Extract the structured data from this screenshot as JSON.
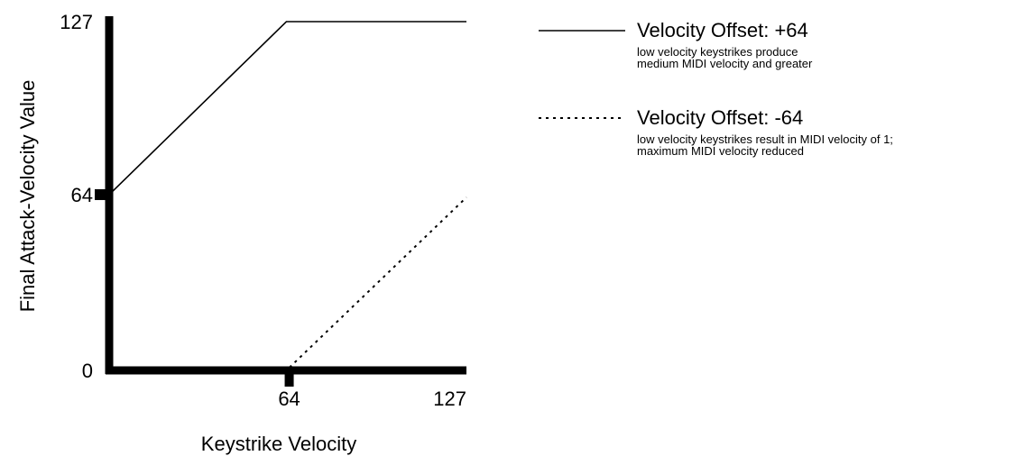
{
  "chart_data": {
    "type": "line",
    "title": "",
    "xlabel": "Keystrike Velocity",
    "ylabel": "Final Attack-Velocity Value",
    "xlim": [
      0,
      127
    ],
    "ylim": [
      0,
      127
    ],
    "x_ticks": [
      {
        "value": 64,
        "label": "64"
      },
      {
        "value": 127,
        "label": "127"
      }
    ],
    "y_ticks": [
      {
        "value": 0,
        "label": "0"
      },
      {
        "value": 64,
        "label": "64"
      },
      {
        "value": 127,
        "label": "127"
      }
    ],
    "grid": false,
    "legend_position": "right",
    "series": [
      {
        "name": "Velocity Offset: +64",
        "description": [
          "low velocity keystrikes produce",
          "medium MIDI velocity and greater"
        ],
        "style": "solid",
        "x": [
          0,
          63,
          127
        ],
        "y": [
          64,
          127,
          127
        ]
      },
      {
        "name": "Velocity Offset: -64",
        "description": [
          "low velocity keystrikes result in MIDI velocity of 1;",
          "maximum MIDI velocity reduced"
        ],
        "style": "dotted",
        "x": [
          0,
          64,
          127
        ],
        "y": [
          1,
          1,
          63
        ]
      }
    ],
    "colors": {
      "line": "#000000",
      "axis": "#000000",
      "background": "#ffffff"
    }
  }
}
